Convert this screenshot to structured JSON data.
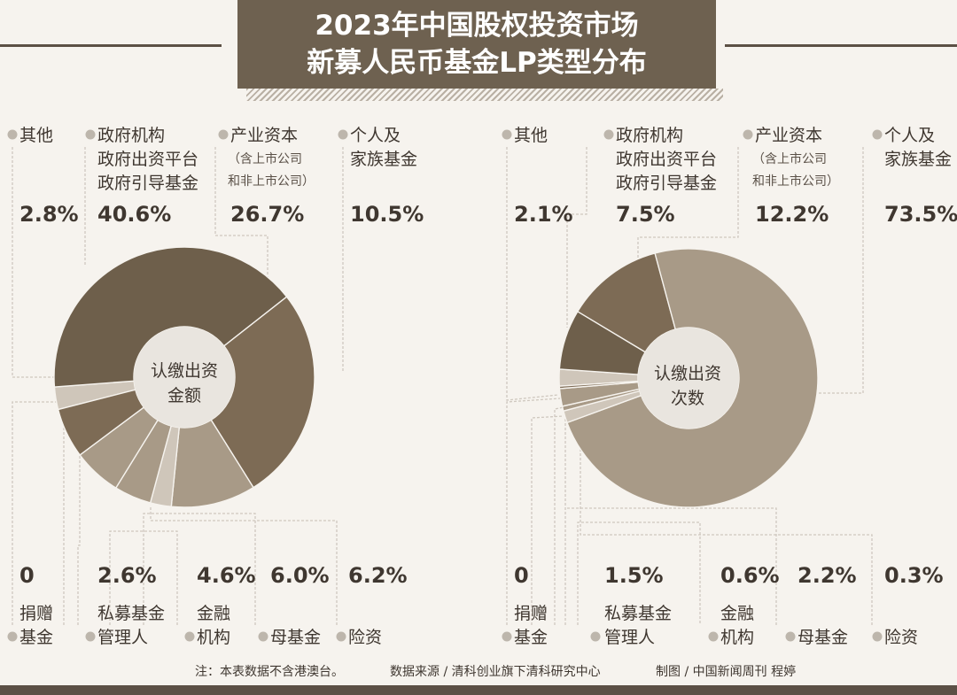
{
  "title": {
    "line1": "2023年中国股权投资市场",
    "line2": "新募人民币基金LP类型分布"
  },
  "colors": {
    "dark": "#6e5f4b",
    "mid": "#7d6b55",
    "light": "#a89a87",
    "pale": "#cfc6ba",
    "center": "#e9e5df",
    "bg": "#f6f3ee",
    "line": "#cfc8bf"
  },
  "labels": {
    "qita": "其他",
    "zhengfu": [
      "政府机构",
      "政府出资平台",
      "政府引导基金"
    ],
    "chanye": "产业资本",
    "chanye_sub": [
      "（含上市公司",
      "和非上市公司）"
    ],
    "geren": [
      "个人及",
      "家族基金"
    ],
    "juanzeng": [
      "捐赠",
      "基金"
    ],
    "simu": [
      "私募基金",
      "管理人"
    ],
    "jinrong": [
      "金融",
      "机构"
    ],
    "mujijin": "母基金",
    "xianzi": "险资"
  },
  "chart_data": [
    {
      "type": "pie",
      "title": "认缴出资金额",
      "center_label": [
        "认缴出资",
        "金额"
      ],
      "categories": [
        "其他",
        "政府机构 政府出资平台 政府引导基金",
        "产业资本（含上市公司和非上市公司）",
        "个人及家族基金",
        "捐赠基金",
        "私募基金管理人",
        "金融机构",
        "母基金",
        "险资"
      ],
      "values": [
        2.8,
        40.6,
        26.7,
        10.5,
        0,
        2.6,
        4.6,
        6.0,
        6.2
      ],
      "value_labels": {
        "qita": "2.8%",
        "zhengfu": "40.6%",
        "chanye": "26.7%",
        "geren": "10.5%",
        "juanzeng": "0",
        "simu": "2.6%",
        "jinrong": "4.6%",
        "mujijin": "6.0%",
        "xianzi": "6.2%"
      }
    },
    {
      "type": "pie",
      "title": "认缴出资次数",
      "center_label": [
        "认缴出资",
        "次数"
      ],
      "categories": [
        "其他",
        "政府机构 政府出资平台 政府引导基金",
        "产业资本（含上市公司和非上市公司）",
        "个人及家族基金",
        "捐赠基金",
        "私募基金管理人",
        "金融机构",
        "母基金",
        "险资"
      ],
      "values": [
        2.1,
        7.5,
        12.2,
        73.5,
        0,
        1.5,
        0.6,
        2.2,
        0.3
      ],
      "value_labels": {
        "qita": "2.1%",
        "zhengfu": "7.5%",
        "chanye": "12.2%",
        "geren": "73.5%",
        "juanzeng": "0",
        "simu": "1.5%",
        "jinrong": "0.6%",
        "mujijin": "2.2%",
        "xianzi": "0.3%"
      }
    }
  ],
  "footer": {
    "note": "注：本表数据不含港澳台。",
    "source": "数据来源 / 清科创业旗下清科研究中心",
    "credit": "制图 / 中国新闻周刊  程婷"
  }
}
